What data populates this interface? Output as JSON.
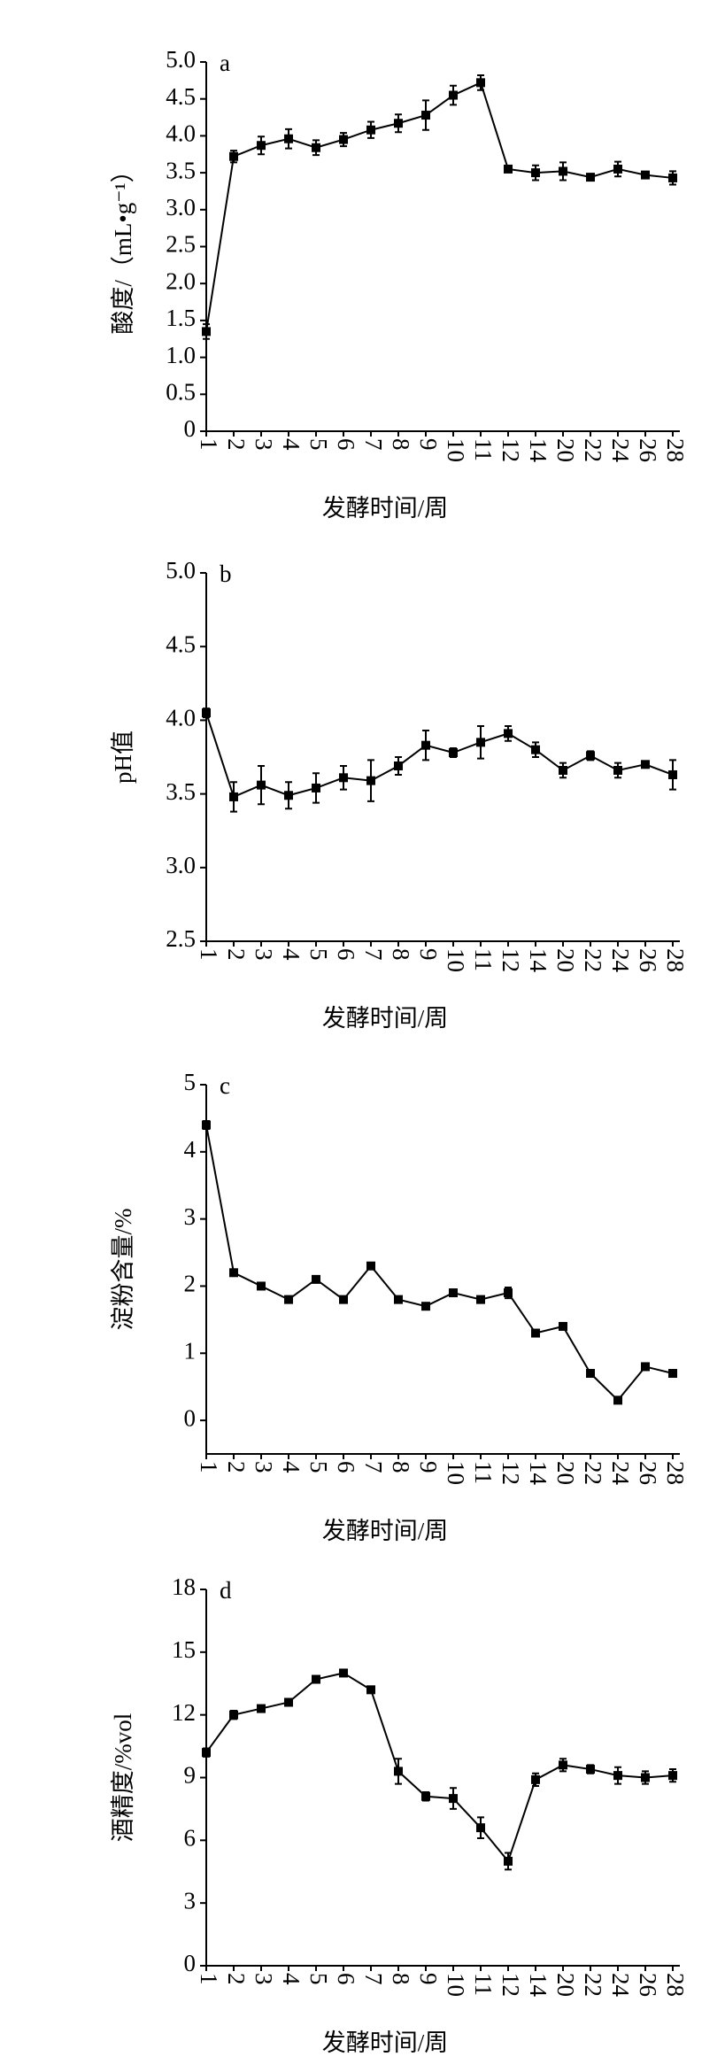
{
  "chart_data": [
    {
      "type": "line",
      "panel": "a",
      "y_label": "酸度/（mL•g⁻¹）",
      "x_label": "发酵时间/周",
      "categories": [
        "1",
        "2",
        "3",
        "4",
        "5",
        "6",
        "7",
        "8",
        "9",
        "10",
        "11",
        "12",
        "14",
        "20",
        "22",
        "24",
        "26",
        "28"
      ],
      "values": [
        1.35,
        3.72,
        3.87,
        3.96,
        3.84,
        3.95,
        4.08,
        4.17,
        4.28,
        4.55,
        4.72,
        3.55,
        3.5,
        3.52,
        3.44,
        3.55,
        3.47,
        3.43
      ],
      "errors": [
        0.1,
        0.08,
        0.12,
        0.13,
        0.1,
        0.09,
        0.11,
        0.12,
        0.2,
        0.13,
        0.1,
        0.03,
        0.1,
        0.12,
        0.03,
        0.1,
        0.03,
        0.09
      ],
      "color": "#000000",
      "ylim": [
        0,
        5
      ],
      "yticks": [
        0,
        {
          "value": 0.5,
          "label": "0.5"
        },
        {
          "value": 1,
          "label": "1.0"
        },
        1.5,
        {
          "value": 2,
          "label": "2.0"
        },
        2.5,
        {
          "value": 3,
          "label": "3.0"
        },
        3.5,
        {
          "value": 4,
          "label": "4.0"
        },
        4.5,
        {
          "value": 5,
          "label": "5.0"
        }
      ]
    },
    {
      "type": "line",
      "panel": "b",
      "y_label": "pH值",
      "x_label": "发酵时间/周",
      "categories": [
        "1",
        "2",
        "3",
        "4",
        "5",
        "6",
        "7",
        "8",
        "9",
        "10",
        "11",
        "12",
        "14",
        "20",
        "22",
        "24",
        "26",
        "28"
      ],
      "values": [
        4.05,
        3.48,
        3.56,
        3.49,
        3.54,
        3.61,
        3.59,
        3.69,
        3.83,
        3.78,
        3.85,
        3.91,
        3.8,
        3.66,
        3.76,
        3.66,
        3.7,
        3.63
      ],
      "errors": [
        0.03,
        0.1,
        0.13,
        0.09,
        0.1,
        0.08,
        0.14,
        0.06,
        0.1,
        0.03,
        0.11,
        0.05,
        0.05,
        0.05,
        0.03,
        0.05,
        0.02,
        0.1
      ],
      "color": "#000000",
      "ylim": [
        2.5,
        5
      ],
      "yticks": [
        2.5,
        {
          "value": 3,
          "label": "3.0"
        },
        3.5,
        {
          "value": 4,
          "label": "4.0"
        },
        4.5,
        {
          "value": 5,
          "label": "5.0"
        }
      ]
    },
    {
      "type": "line",
      "panel": "c",
      "y_label": "淀粉含量/%",
      "x_label": "发酵时间/周",
      "categories": [
        "1",
        "2",
        "3",
        "4",
        "5",
        "6",
        "7",
        "8",
        "9",
        "10",
        "11",
        "12",
        "14",
        "20",
        "22",
        "24",
        "26",
        "28"
      ],
      "values": [
        4.4,
        2.2,
        2.0,
        1.8,
        2.1,
        1.8,
        2.3,
        1.8,
        1.7,
        1.9,
        1.8,
        1.9,
        1.3,
        1.4,
        0.7,
        0.3,
        0.8,
        0.7
      ],
      "errors": [
        0.06,
        0.03,
        0.03,
        0.03,
        0.03,
        0.03,
        0.03,
        0.03,
        0.03,
        0.03,
        0.03,
        0.08,
        0.03,
        0.03,
        0.03,
        0.03,
        0.03,
        0.03
      ],
      "color": "#000000",
      "ylim": [
        -0.5,
        5
      ],
      "yticks": [
        0,
        1,
        2,
        3,
        4,
        5
      ]
    },
    {
      "type": "line",
      "panel": "d",
      "y_label": "酒精度/%vol",
      "x_label": "发酵时间/周",
      "categories": [
        "1",
        "2",
        "3",
        "4",
        "5",
        "6",
        "7",
        "8",
        "9",
        "10",
        "11",
        "12",
        "14",
        "20",
        "22",
        "24",
        "26",
        "28"
      ],
      "values": [
        10.2,
        12.0,
        12.3,
        12.6,
        13.7,
        14.0,
        13.2,
        9.3,
        8.1,
        8.0,
        6.6,
        5.0,
        8.9,
        9.6,
        9.4,
        9.1,
        9.0,
        9.1
      ],
      "errors": [
        0.2,
        0.2,
        0.15,
        0.15,
        0.15,
        0.15,
        0.15,
        0.6,
        0.2,
        0.5,
        0.5,
        0.4,
        0.3,
        0.3,
        0.2,
        0.4,
        0.3,
        0.3
      ],
      "color": "#000000",
      "ylim": [
        0,
        18
      ],
      "yticks": [
        0,
        3,
        6,
        9,
        12,
        15,
        18
      ]
    }
  ]
}
